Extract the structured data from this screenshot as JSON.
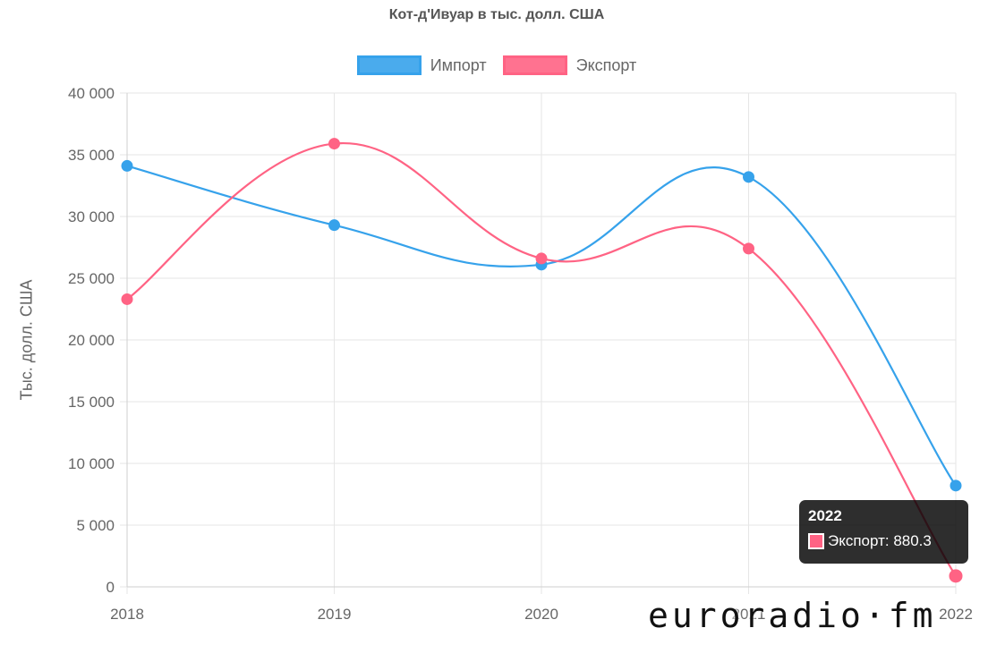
{
  "chart_data": {
    "type": "line",
    "title": "Кот-д'Ивуар в тыс. долл. США",
    "xlabel": "",
    "ylabel": "Тыс. долл. США",
    "categories": [
      "2018",
      "2019",
      "2020",
      "2021",
      "2022"
    ],
    "ylim": [
      0,
      40000
    ],
    "yticks": [
      0,
      5000,
      10000,
      15000,
      20000,
      25000,
      30000,
      35000,
      40000
    ],
    "ytick_labels": [
      "0",
      "5 000",
      "10 000",
      "15 000",
      "20 000",
      "25 000",
      "30 000",
      "35 000",
      "40 000"
    ],
    "grid": true,
    "legend_position": "top",
    "series": [
      {
        "name": "Импорт",
        "color": "#36a2eb",
        "values": [
          34100,
          29300,
          26100,
          33200,
          8200
        ]
      },
      {
        "name": "Экспорт",
        "color": "#ff6384",
        "values": [
          23300,
          35900,
          26600,
          27400,
          880.3
        ]
      }
    ]
  },
  "tooltip": {
    "title": "2022",
    "label": "Экспорт: 880.3"
  },
  "watermark": "euroradio·fm"
}
